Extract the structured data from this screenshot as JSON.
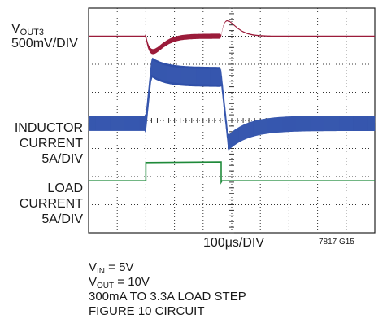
{
  "labels": {
    "vout_main": "V",
    "vout_sub": "OUT3",
    "vout_scale": "500mV/DIV",
    "ind_line1": "INDUCTOR",
    "ind_line2": "CURRENT",
    "ind_scale": "5A/DIV",
    "load_line1": "LOAD",
    "load_line2": "CURRENT",
    "load_scale": "5A/DIV",
    "time_scale": "100μs/DIV",
    "figure_code": "7817 G15"
  },
  "conditions": {
    "vin_main": "V",
    "vin_sub": "IN",
    "vin_value": " = 5V",
    "vout_main": "V",
    "vout_sub": "OUT",
    "vout_value": " = 10V",
    "step": "300mA TO 3.3A LOAD STEP",
    "circuit": "FIGURE 10 CIRCUIT"
  },
  "chart_data": {
    "type": "line",
    "x_unit": "divisions",
    "x_range": [
      0,
      10
    ],
    "y_range_divisions": [
      0,
      8
    ],
    "grid": true,
    "load_step": {
      "rise_div": 2.0,
      "fall_div": 4.63
    },
    "series": [
      {
        "key": "vout",
        "color": "#9b1b3a",
        "baseline_div": 7.0,
        "dip_depth_div": 0.55,
        "overshoot_div": 0.55
      },
      {
        "key": "inductor",
        "color": "#2f4fa8",
        "low_center_div": 3.9,
        "high_center_div": 5.55,
        "ripple_div": 0.55
      },
      {
        "key": "load",
        "color": "#1f8a3a",
        "low_div": 1.85,
        "high_div": 2.5
      }
    ]
  }
}
